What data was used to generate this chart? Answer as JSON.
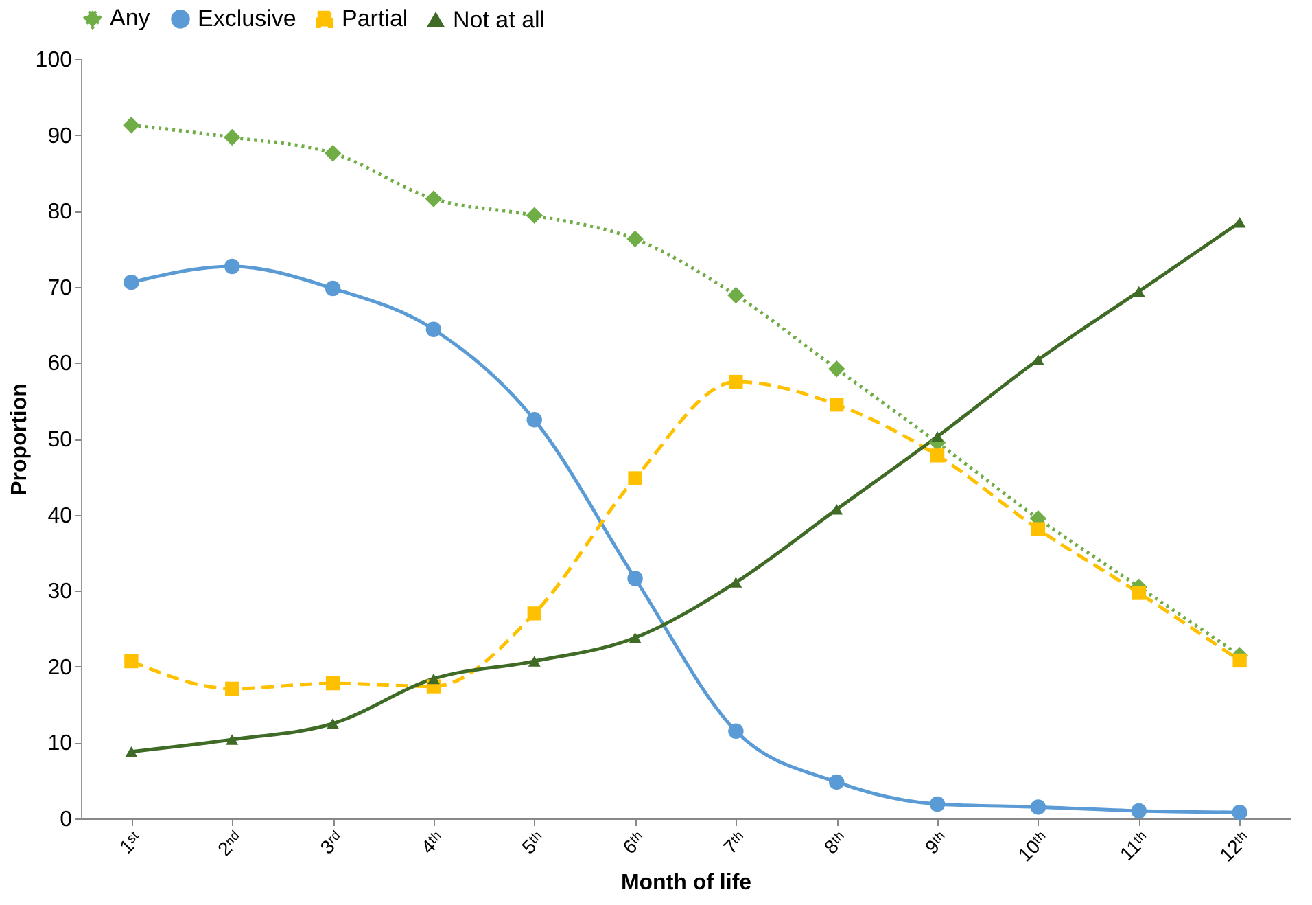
{
  "chart_data": {
    "type": "line",
    "xlabel": "Month of life",
    "ylabel": "Proportion",
    "categories": [
      "1ˢᵗ",
      "2ⁿᵈ",
      "3ʳᵈ",
      "4ᵗʰ",
      "5ᵗʰ",
      "6ᵗʰ",
      "7ᵗʰ",
      "8ᵗʰ",
      "9ᵗʰ",
      "10ᵗʰ",
      "11ᵗʰ",
      "12ᵗʰ"
    ],
    "series": [
      {
        "name": "Any",
        "color": "#70ad47",
        "marker": "diamond",
        "line_style": "dotted",
        "values": [
          91.3,
          89.7,
          87.6,
          81.6,
          79.4,
          76.3,
          68.9,
          59.2,
          49.5,
          39.5,
          30.5,
          21.5
        ]
      },
      {
        "name": "Exclusive",
        "color": "#5b9bd5",
        "marker": "circle",
        "line_style": "solid",
        "values": [
          70.6,
          72.7,
          69.8,
          64.4,
          52.5,
          31.6,
          11.5,
          4.8,
          1.9,
          1.5,
          1.0,
          0.8
        ]
      },
      {
        "name": "Partial",
        "color": "#ffc000",
        "marker": "square",
        "line_style": "dashed",
        "values": [
          20.7,
          17.1,
          17.8,
          17.4,
          27.0,
          44.8,
          57.5,
          54.5,
          47.8,
          38.1,
          29.7,
          20.8
        ]
      },
      {
        "name": "Not at all",
        "color": "#3f6b26",
        "marker": "triangle",
        "line_style": "solid",
        "values": [
          8.8,
          10.4,
          12.5,
          18.4,
          20.7,
          23.8,
          31.1,
          40.7,
          50.3,
          60.4,
          69.4,
          78.5
        ]
      }
    ],
    "ylim": [
      0,
      100
    ],
    "yticks": [
      0,
      10,
      20,
      30,
      40,
      50,
      60,
      70,
      80,
      90,
      100
    ],
    "grid": false,
    "legend": "top"
  }
}
